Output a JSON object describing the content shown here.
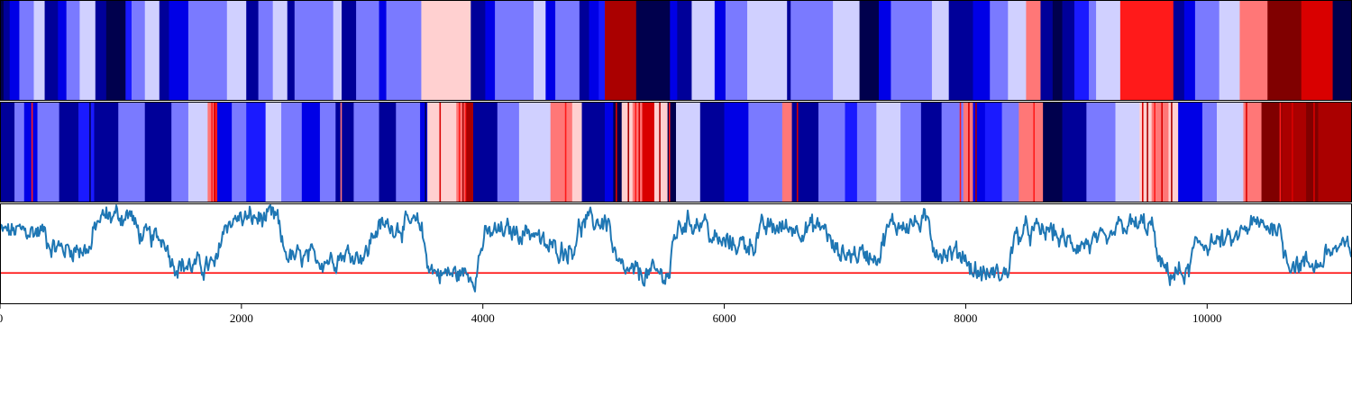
{
  "chart_data": {
    "type": "heatmap",
    "title": "",
    "xlabel": "",
    "ylabel": "",
    "xlim": [
      0,
      11200
    ],
    "x_ticks": [
      0,
      2000,
      4000,
      6000,
      8000,
      10000
    ],
    "x_tick_labels": [
      "0",
      "2000",
      "4000",
      "6000",
      "8000",
      "10000"
    ],
    "legend": "none",
    "grid": false,
    "colormap": {
      "name": "seismic",
      "colors": [
        "#00004d",
        "#000099",
        "#0000e6",
        "#1a1aff",
        "#7a7aff",
        "#d0d0ff",
        "#ffd0d0",
        "#ff7777",
        "#ff1a1a",
        "#d90000",
        "#aa0000",
        "#800000"
      ]
    },
    "top_strip": {
      "segments": [
        [
          0,
          30,
          0
        ],
        [
          30,
          80,
          1
        ],
        [
          80,
          160,
          2
        ],
        [
          160,
          280,
          4
        ],
        [
          280,
          370,
          5
        ],
        [
          370,
          480,
          1
        ],
        [
          480,
          550,
          2
        ],
        [
          550,
          660,
          4
        ],
        [
          660,
          790,
          5
        ],
        [
          790,
          880,
          1
        ],
        [
          880,
          1040,
          0
        ],
        [
          1040,
          1090,
          3
        ],
        [
          1090,
          1200,
          4
        ],
        [
          1200,
          1320,
          5
        ],
        [
          1320,
          1400,
          1
        ],
        [
          1400,
          1560,
          2
        ],
        [
          1560,
          1880,
          4
        ],
        [
          1880,
          2040,
          5
        ],
        [
          2040,
          2140,
          1
        ],
        [
          2140,
          2260,
          4
        ],
        [
          2260,
          2380,
          5
        ],
        [
          2380,
          2440,
          1
        ],
        [
          2440,
          2760,
          4
        ],
        [
          2760,
          2830,
          5
        ],
        [
          2830,
          2950,
          1
        ],
        [
          2950,
          3140,
          4
        ],
        [
          3140,
          3200,
          2
        ],
        [
          3200,
          3490,
          4
        ],
        [
          3490,
          3900,
          6
        ],
        [
          3900,
          4020,
          1
        ],
        [
          4020,
          4100,
          2
        ],
        [
          4100,
          4420,
          4
        ],
        [
          4420,
          4520,
          5
        ],
        [
          4520,
          4600,
          2
        ],
        [
          4600,
          4800,
          4
        ],
        [
          4800,
          4880,
          1
        ],
        [
          4880,
          4960,
          2
        ],
        [
          4960,
          5010,
          3
        ],
        [
          5010,
          5270,
          10
        ],
        [
          5270,
          5550,
          0
        ],
        [
          5550,
          5610,
          2
        ],
        [
          5610,
          5730,
          1
        ],
        [
          5730,
          5920,
          5
        ],
        [
          5920,
          6010,
          2
        ],
        [
          6010,
          6190,
          4
        ],
        [
          6190,
          6520,
          5
        ],
        [
          6520,
          6550,
          1
        ],
        [
          6550,
          6900,
          4
        ],
        [
          6900,
          7120,
          5
        ],
        [
          7120,
          7280,
          0
        ],
        [
          7280,
          7380,
          2
        ],
        [
          7380,
          7720,
          4
        ],
        [
          7720,
          7860,
          5
        ],
        [
          7860,
          8060,
          1
        ],
        [
          8060,
          8200,
          2
        ],
        [
          8200,
          8350,
          4
        ],
        [
          8350,
          8500,
          5
        ],
        [
          8500,
          8620,
          7
        ],
        [
          8620,
          8720,
          1
        ],
        [
          8720,
          8800,
          0
        ],
        [
          8800,
          8900,
          1
        ],
        [
          8900,
          9020,
          3
        ],
        [
          9020,
          9080,
          4
        ],
        [
          9080,
          9280,
          5
        ],
        [
          9280,
          9720,
          8
        ],
        [
          9720,
          9810,
          1
        ],
        [
          9810,
          9900,
          2
        ],
        [
          9900,
          10100,
          4
        ],
        [
          10100,
          10270,
          5
        ],
        [
          10270,
          10500,
          7
        ],
        [
          10500,
          10780,
          11
        ],
        [
          10780,
          11040,
          9
        ],
        [
          11040,
          11200,
          0
        ]
      ]
    },
    "middle_strip": {
      "segments": [
        [
          0,
          120,
          1
        ],
        [
          120,
          200,
          4
        ],
        [
          200,
          310,
          2
        ],
        [
          310,
          490,
          4
        ],
        [
          490,
          650,
          1
        ],
        [
          650,
          780,
          3
        ],
        [
          780,
          980,
          1
        ],
        [
          980,
          1200,
          4
        ],
        [
          1200,
          1420,
          1
        ],
        [
          1420,
          1560,
          4
        ],
        [
          1560,
          1720,
          5
        ],
        [
          1720,
          1780,
          7
        ],
        [
          1780,
          1800,
          8
        ],
        [
          1800,
          1920,
          2
        ],
        [
          1920,
          2040,
          4
        ],
        [
          2040,
          2200,
          3
        ],
        [
          2200,
          2330,
          5
        ],
        [
          2330,
          2500,
          4
        ],
        [
          2500,
          2650,
          2
        ],
        [
          2650,
          2780,
          4
        ],
        [
          2780,
          2930,
          1
        ],
        [
          2930,
          3140,
          4
        ],
        [
          3140,
          3280,
          1
        ],
        [
          3280,
          3480,
          4
        ],
        [
          3480,
          3540,
          2
        ],
        [
          3540,
          3780,
          6
        ],
        [
          3780,
          3860,
          7
        ],
        [
          3860,
          3920,
          10
        ],
        [
          3920,
          4120,
          1
        ],
        [
          4120,
          4300,
          4
        ],
        [
          4300,
          4560,
          5
        ],
        [
          4560,
          4740,
          7
        ],
        [
          4740,
          4820,
          6
        ],
        [
          4820,
          5010,
          1
        ],
        [
          5010,
          5080,
          2
        ],
        [
          5080,
          5150,
          0
        ],
        [
          5150,
          5240,
          6
        ],
        [
          5240,
          5320,
          7
        ],
        [
          5320,
          5420,
          9
        ],
        [
          5420,
          5530,
          6
        ],
        [
          5530,
          5600,
          0
        ],
        [
          5600,
          5800,
          5
        ],
        [
          5800,
          6000,
          1
        ],
        [
          6000,
          6200,
          2
        ],
        [
          6200,
          6480,
          4
        ],
        [
          6480,
          6560,
          7
        ],
        [
          6560,
          6780,
          1
        ],
        [
          6780,
          7000,
          4
        ],
        [
          7000,
          7100,
          3
        ],
        [
          7100,
          7260,
          4
        ],
        [
          7260,
          7460,
          5
        ],
        [
          7460,
          7630,
          4
        ],
        [
          7630,
          7800,
          1
        ],
        [
          7800,
          7980,
          4
        ],
        [
          7980,
          8060,
          7
        ],
        [
          8060,
          8160,
          2
        ],
        [
          8160,
          8300,
          3
        ],
        [
          8300,
          8440,
          4
        ],
        [
          8440,
          8640,
          7
        ],
        [
          8640,
          8800,
          0
        ],
        [
          8800,
          9000,
          1
        ],
        [
          9000,
          9240,
          4
        ],
        [
          9240,
          9440,
          5
        ],
        [
          9440,
          9540,
          6
        ],
        [
          9540,
          9680,
          7
        ],
        [
          9680,
          9760,
          6
        ],
        [
          9760,
          9960,
          2
        ],
        [
          9960,
          10080,
          4
        ],
        [
          10080,
          10300,
          5
        ],
        [
          10300,
          10450,
          7
        ],
        [
          10450,
          10620,
          11
        ],
        [
          10620,
          10820,
          10
        ],
        [
          10820,
          10920,
          11
        ],
        [
          10920,
          11200,
          10
        ]
      ],
      "thin_lines": [
        [
          260,
          8
        ],
        [
          740,
          0
        ],
        [
          1750,
          8
        ],
        [
          1770,
          9
        ],
        [
          2820,
          7
        ],
        [
          3520,
          0
        ],
        [
          3640,
          9
        ],
        [
          3800,
          8
        ],
        [
          3830,
          10
        ],
        [
          3850,
          8
        ],
        [
          4600,
          7
        ],
        [
          4680,
          8
        ],
        [
          5100,
          9
        ],
        [
          5200,
          10
        ],
        [
          5260,
          8
        ],
        [
          5290,
          9
        ],
        [
          5460,
          10
        ],
        [
          5540,
          8
        ],
        [
          6600,
          9
        ],
        [
          7950,
          8
        ],
        [
          8020,
          9
        ],
        [
          8080,
          10
        ],
        [
          8560,
          8
        ],
        [
          9460,
          9
        ],
        [
          9500,
          10
        ],
        [
          9560,
          8
        ],
        [
          9620,
          9
        ],
        [
          9700,
          10
        ],
        [
          10320,
          9
        ],
        [
          10600,
          8
        ],
        [
          10700,
          9
        ],
        [
          10760,
          10
        ],
        [
          10880,
          9
        ]
      ]
    },
    "series": [
      {
        "type": "line",
        "color": "#1f77b4",
        "y_range": [
          0,
          1
        ],
        "regimes": [
          [
            0,
            380,
            0.72
          ],
          [
            380,
            760,
            0.55
          ],
          [
            760,
            1100,
            0.88
          ],
          [
            1100,
            1380,
            0.65
          ],
          [
            1380,
            1800,
            0.38
          ],
          [
            1800,
            2300,
            0.85
          ],
          [
            2300,
            2750,
            0.45
          ],
          [
            2750,
            3050,
            0.5
          ],
          [
            3050,
            3500,
            0.78
          ],
          [
            3500,
            3950,
            0.3
          ],
          [
            3950,
            4450,
            0.72
          ],
          [
            4450,
            4750,
            0.55
          ],
          [
            4750,
            5050,
            0.82
          ],
          [
            5050,
            5550,
            0.3
          ],
          [
            5550,
            5850,
            0.82
          ],
          [
            5850,
            6250,
            0.6
          ],
          [
            6250,
            6850,
            0.76
          ],
          [
            6850,
            7300,
            0.5
          ],
          [
            7300,
            7700,
            0.8
          ],
          [
            7700,
            8000,
            0.5
          ],
          [
            8000,
            8350,
            0.3
          ],
          [
            8350,
            8750,
            0.72
          ],
          [
            8750,
            9200,
            0.6
          ],
          [
            9200,
            9550,
            0.78
          ],
          [
            9550,
            9850,
            0.3
          ],
          [
            9850,
            10250,
            0.62
          ],
          [
            10250,
            10600,
            0.78
          ],
          [
            10600,
            10950,
            0.4
          ],
          [
            10950,
            11200,
            0.55
          ]
        ],
        "noise_amplitude": 0.07
      },
      {
        "type": "hline",
        "color": "#ff0000",
        "y": 0.31
      }
    ]
  }
}
